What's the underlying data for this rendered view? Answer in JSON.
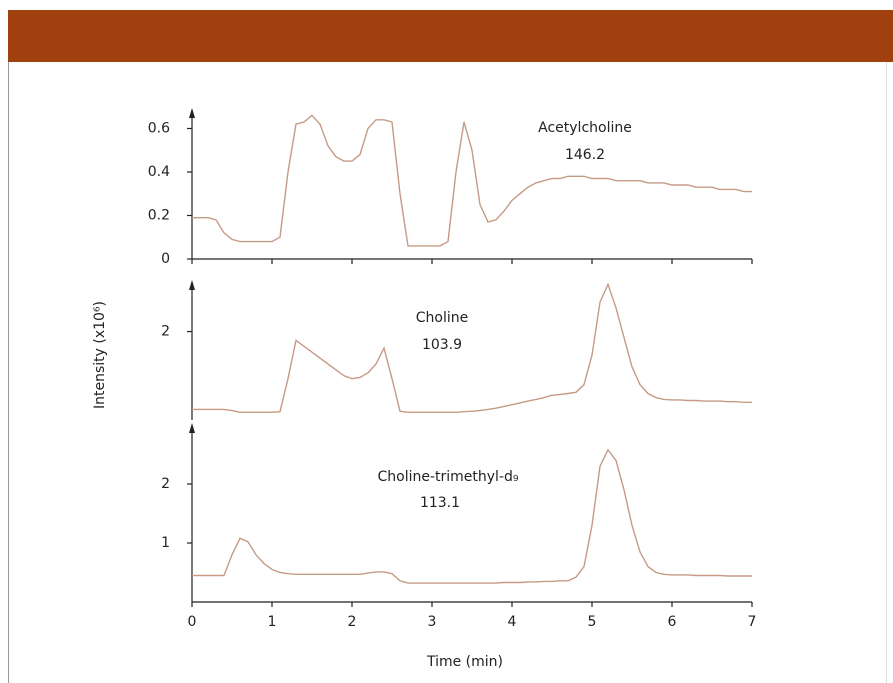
{
  "chart_data": [
    {
      "type": "line",
      "color": "#c79a86",
      "annotations": [
        "Acetylcholine",
        "146.2"
      ],
      "xlim": [
        0,
        7
      ],
      "xticks": [
        0,
        1,
        2,
        3,
        4,
        5,
        6,
        7
      ],
      "ylim": [
        0,
        0.685
      ],
      "yticks": [
        0,
        0.2,
        0.4,
        0.6
      ],
      "x": [
        0,
        0.1,
        0.2,
        0.3,
        0.4,
        0.5,
        0.6,
        0.7,
        0.8,
        0.9,
        1,
        1.1,
        1.2,
        1.3,
        1.4,
        1.5,
        1.6,
        1.7,
        1.8,
        1.9,
        2,
        2.1,
        2.2,
        2.3,
        2.4,
        2.5,
        2.6,
        2.7,
        2.8,
        2.9,
        3,
        3.1,
        3.2,
        3.3,
        3.4,
        3.5,
        3.6,
        3.7,
        3.8,
        3.9,
        4,
        4.1,
        4.2,
        4.3,
        4.4,
        4.5,
        4.6,
        4.7,
        4.8,
        4.9,
        5,
        5.1,
        5.2,
        5.3,
        5.4,
        5.5,
        5.6,
        5.7,
        5.8,
        5.9,
        6,
        6.1,
        6.2,
        6.3,
        6.4,
        6.5,
        6.6,
        6.7,
        6.8,
        6.9,
        7
      ],
      "values": [
        0.19,
        0.19,
        0.19,
        0.18,
        0.12,
        0.09,
        0.08,
        0.08,
        0.08,
        0.08,
        0.08,
        0.1,
        0.4,
        0.62,
        0.63,
        0.66,
        0.62,
        0.52,
        0.47,
        0.45,
        0.45,
        0.48,
        0.6,
        0.64,
        0.64,
        0.63,
        0.3,
        0.06,
        0.06,
        0.06,
        0.06,
        0.06,
        0.08,
        0.4,
        0.63,
        0.5,
        0.25,
        0.17,
        0.18,
        0.22,
        0.27,
        0.3,
        0.33,
        0.35,
        0.36,
        0.37,
        0.37,
        0.38,
        0.38,
        0.38,
        0.37,
        0.37,
        0.37,
        0.36,
        0.36,
        0.36,
        0.36,
        0.35,
        0.35,
        0.35,
        0.34,
        0.34,
        0.34,
        0.33,
        0.33,
        0.33,
        0.32,
        0.32,
        0.32,
        0.31,
        0.31
      ]
    },
    {
      "type": "line",
      "color": "#c79a86",
      "annotations": [
        "Choline",
        "103.9"
      ],
      "ylabel": "Intensity (x10⁶)",
      "xlim": [
        0,
        7
      ],
      "ylim": [
        0.5,
        2.84
      ],
      "yticks": [
        2
      ],
      "x": [
        0,
        0.1,
        0.2,
        0.3,
        0.4,
        0.5,
        0.6,
        0.7,
        0.8,
        0.9,
        1,
        1.1,
        1.2,
        1.3,
        1.4,
        1.5,
        1.6,
        1.7,
        1.8,
        1.9,
        2,
        2.1,
        2.2,
        2.3,
        2.4,
        2.5,
        2.6,
        2.7,
        2.8,
        2.9,
        3,
        3.1,
        3.2,
        3.3,
        3.4,
        3.5,
        3.6,
        3.7,
        3.8,
        3.9,
        4,
        4.1,
        4.2,
        4.3,
        4.4,
        4.5,
        4.6,
        4.7,
        4.8,
        4.9,
        5,
        5.1,
        5.2,
        5.3,
        5.4,
        5.5,
        5.6,
        5.7,
        5.8,
        5.9,
        6,
        6.1,
        6.2,
        6.3,
        6.4,
        6.5,
        6.6,
        6.7,
        6.8,
        6.9,
        7
      ],
      "values": [
        0.68,
        0.68,
        0.68,
        0.68,
        0.68,
        0.66,
        0.63,
        0.63,
        0.63,
        0.63,
        0.63,
        0.64,
        1.2,
        1.85,
        1.75,
        1.65,
        1.55,
        1.45,
        1.35,
        1.25,
        1.2,
        1.22,
        1.3,
        1.45,
        1.72,
        1.2,
        0.65,
        0.63,
        0.63,
        0.63,
        0.63,
        0.63,
        0.63,
        0.63,
        0.64,
        0.65,
        0.66,
        0.68,
        0.7,
        0.73,
        0.76,
        0.79,
        0.82,
        0.85,
        0.88,
        0.92,
        0.93,
        0.95,
        0.97,
        1.1,
        1.6,
        2.5,
        2.8,
        2.4,
        1.9,
        1.4,
        1.1,
        0.95,
        0.88,
        0.85,
        0.84,
        0.84,
        0.83,
        0.83,
        0.82,
        0.82,
        0.82,
        0.81,
        0.81,
        0.8,
        0.8
      ]
    },
    {
      "type": "line",
      "color": "#c79a86",
      "annotations": [
        "Choline-trimethyl-d₉",
        "113.1"
      ],
      "xlabel": "Time (min)",
      "xlim": [
        0,
        7
      ],
      "xticks": [
        0,
        1,
        2,
        3,
        4,
        5,
        6,
        7
      ],
      "ylim": [
        0,
        3
      ],
      "yticks": [
        1,
        2
      ],
      "x": [
        0,
        0.1,
        0.2,
        0.3,
        0.4,
        0.5,
        0.6,
        0.7,
        0.8,
        0.9,
        1,
        1.1,
        1.2,
        1.3,
        1.4,
        1.5,
        1.6,
        1.7,
        1.8,
        1.9,
        2,
        2.1,
        2.2,
        2.3,
        2.4,
        2.5,
        2.6,
        2.7,
        2.8,
        2.9,
        3,
        3.1,
        3.2,
        3.3,
        3.4,
        3.5,
        3.6,
        3.7,
        3.8,
        3.9,
        4,
        4.1,
        4.2,
        4.3,
        4.4,
        4.5,
        4.6,
        4.7,
        4.8,
        4.9,
        5,
        5.1,
        5.2,
        5.3,
        5.4,
        5.5,
        5.6,
        5.7,
        5.8,
        5.9,
        6,
        6.1,
        6.2,
        6.3,
        6.4,
        6.5,
        6.6,
        6.7,
        6.8,
        6.9,
        7
      ],
      "values": [
        0.45,
        0.45,
        0.45,
        0.45,
        0.45,
        0.8,
        1.08,
        1.02,
        0.8,
        0.65,
        0.55,
        0.5,
        0.48,
        0.47,
        0.47,
        0.47,
        0.47,
        0.47,
        0.47,
        0.47,
        0.47,
        0.47,
        0.49,
        0.51,
        0.51,
        0.48,
        0.36,
        0.32,
        0.32,
        0.32,
        0.32,
        0.32,
        0.32,
        0.32,
        0.32,
        0.32,
        0.32,
        0.32,
        0.32,
        0.33,
        0.33,
        0.33,
        0.34,
        0.34,
        0.35,
        0.35,
        0.36,
        0.36,
        0.42,
        0.6,
        1.3,
        2.3,
        2.58,
        2.4,
        1.9,
        1.3,
        0.85,
        0.6,
        0.5,
        0.47,
        0.46,
        0.46,
        0.46,
        0.45,
        0.45,
        0.45,
        0.45,
        0.44,
        0.44,
        0.44,
        0.44
      ]
    }
  ]
}
